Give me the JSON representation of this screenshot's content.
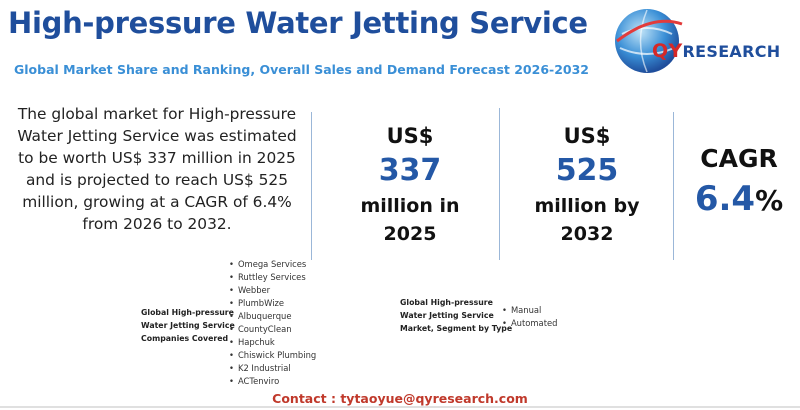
{
  "header": {
    "title": "High-pressure Water Jetting Service",
    "subtitle": "Global Market Share and Ranking, Overall Sales and Demand Forecast 2026-2032"
  },
  "logo": {
    "q_letters": "QY",
    "rest": "RESEARCH"
  },
  "intro": "The global market for High-pressure Water Jetting Service was estimated to be worth US$ 337 million in 2025 and is projected to reach US$ 525 million, growing at a CAGR of 6.4% from 2026 to 2032.",
  "stats": {
    "market_2025": {
      "currency": "US$",
      "value": "337",
      "unit_line1": "million in",
      "unit_line2": "2025"
    },
    "market_2032": {
      "currency": "US$",
      "value": "525",
      "unit_line1": "million by",
      "unit_line2": "2032"
    },
    "cagr": {
      "label": "CAGR",
      "value": "6.4",
      "pct": "%"
    }
  },
  "companies": {
    "label_lines": [
      "Global High-pressure",
      "Water Jetting Service",
      "Companies Covered"
    ],
    "items": [
      "Omega Services",
      "Ruttley Services",
      "Webber",
      "PlumbWize",
      "Albuquerque",
      "CountyClean",
      "Hapchuk",
      "Chiswick Plumbing",
      "K2 Industrial",
      "ACTenviro"
    ]
  },
  "segments": {
    "label_lines": [
      "Global High-pressure",
      "Water Jetting Service",
      "Market, Segment by Type"
    ],
    "items": [
      "Manual",
      "Automated"
    ]
  },
  "contact": "Contact : tytaoyue@qyresearch.com",
  "colors": {
    "title": "#1f4e9c",
    "subtitle": "#3a8fd6",
    "accent_value": "#2458a6",
    "contact": "#c0392b"
  }
}
